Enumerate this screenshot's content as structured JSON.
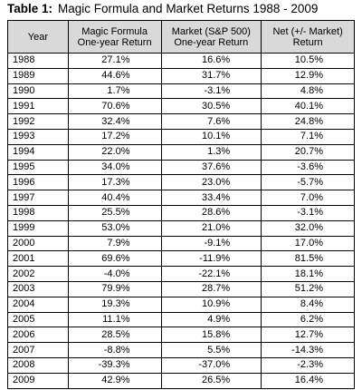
{
  "title": {
    "label": "Table 1:",
    "text": "Magic Formula and Market Returns 1988 - 2009"
  },
  "table": {
    "header": [
      [
        "Year"
      ],
      [
        "Magic Formula",
        "One-year Return"
      ],
      [
        "Market (S&P 500)",
        "One-year Return"
      ],
      [
        "Net (+/- Market)",
        "Return"
      ]
    ],
    "rows": [
      [
        "1988",
        "27.1%",
        "16.6%",
        "10.5%"
      ],
      [
        "1989",
        "44.6%",
        "31.7%",
        "12.9%"
      ],
      [
        "1990",
        "1.7%",
        "-3.1%",
        "4.8%"
      ],
      [
        "1991",
        "70.6%",
        "30.5%",
        "40.1%"
      ],
      [
        "1992",
        "32.4%",
        "7.6%",
        "24.8%"
      ],
      [
        "1993",
        "17.2%",
        "10.1%",
        "7.1%"
      ],
      [
        "1994",
        "22.0%",
        "1.3%",
        "20.7%"
      ],
      [
        "1995",
        "34.0%",
        "37.6%",
        "-3.6%"
      ],
      [
        "1996",
        "17.3%",
        "23.0%",
        "-5.7%"
      ],
      [
        "1997",
        "40.4%",
        "33.4%",
        "7.0%"
      ],
      [
        "1998",
        "25.5%",
        "28.6%",
        "-3.1%"
      ],
      [
        "1999",
        "53.0%",
        "21.0%",
        "32.0%"
      ],
      [
        "2000",
        "7.9%",
        "-9.1%",
        "17.0%"
      ],
      [
        "2001",
        "69.6%",
        "-11.9%",
        "81.5%"
      ],
      [
        "2002",
        "-4.0%",
        "-22.1%",
        "18.1%"
      ],
      [
        "2003",
        "79.9%",
        "28.7%",
        "51.2%"
      ],
      [
        "2004",
        "19.3%",
        "10.9%",
        "8.4%"
      ],
      [
        "2005",
        "11.1%",
        "4.9%",
        "6.2%"
      ],
      [
        "2006",
        "28.5%",
        "15.8%",
        "12.7%"
      ],
      [
        "2007",
        "-8.8%",
        "5.5%",
        "-14.3%"
      ],
      [
        "2008",
        "-39.3%",
        "-37.0%",
        "-2.3%"
      ],
      [
        "2009",
        "42.9%",
        "26.5%",
        "16.4%"
      ]
    ]
  }
}
